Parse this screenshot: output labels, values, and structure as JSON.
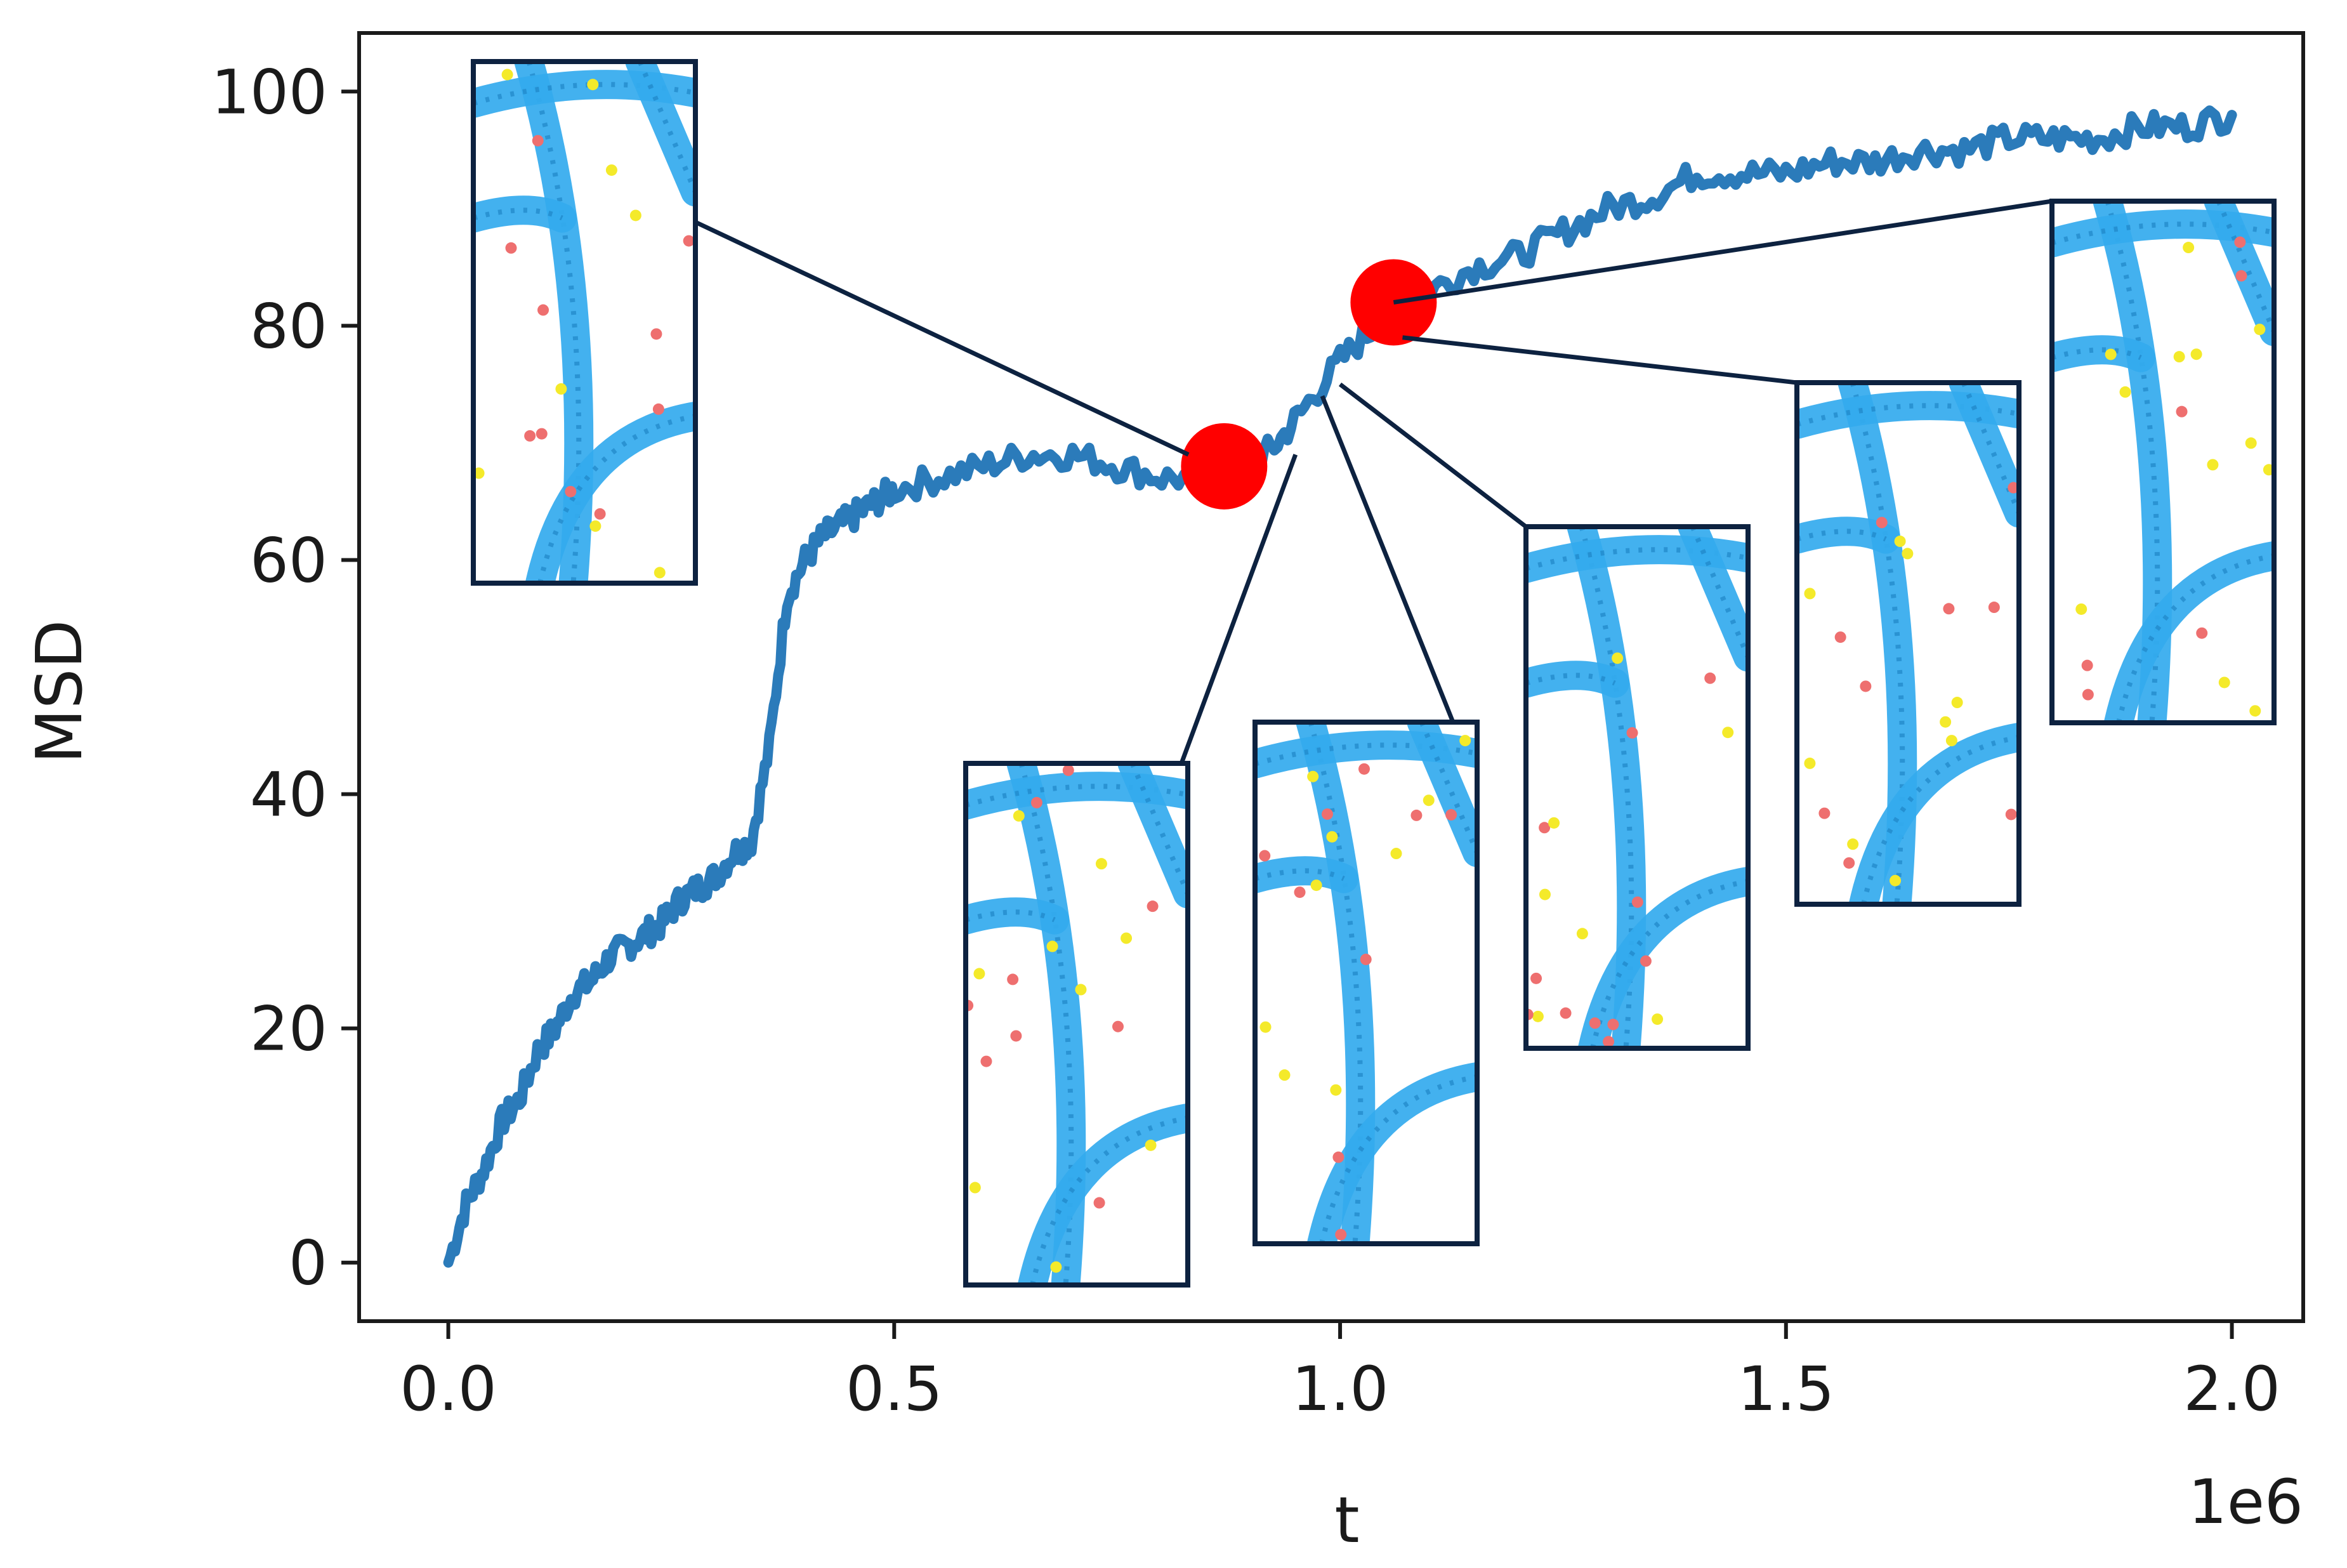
{
  "chart_data": {
    "type": "line",
    "title": "",
    "xlabel": "t",
    "ylabel": "MSD",
    "x_offset_label": "1e6",
    "xlim": [
      -0.1,
      2.08
    ],
    "ylim": [
      -5,
      105
    ],
    "x_ticks": [
      0.0,
      0.5,
      1.0,
      1.5,
      2.0
    ],
    "x_tick_labels": [
      "0.0",
      "0.5",
      "1.0",
      "1.5",
      "2.0"
    ],
    "y_ticks": [
      0,
      20,
      40,
      60,
      80,
      100
    ],
    "y_tick_labels": [
      "0",
      "20",
      "40",
      "60",
      "80",
      "100"
    ],
    "grid": false,
    "colors": {
      "series": "#2b7bba",
      "marker": "#ff0000",
      "connector": "#0d2240",
      "inset_border": "#0d2240",
      "filament": "#33aaee"
    },
    "series": [
      {
        "x": [
          0.0,
          0.02,
          0.04,
          0.06,
          0.08,
          0.1,
          0.12,
          0.14,
          0.16,
          0.18,
          0.2,
          0.22,
          0.24,
          0.26,
          0.28,
          0.3,
          0.32,
          0.34,
          0.36,
          0.38,
          0.4,
          0.42,
          0.44,
          0.46,
          0.48,
          0.5,
          0.55,
          0.6,
          0.65,
          0.7,
          0.75,
          0.8,
          0.85,
          0.87,
          0.9,
          0.93,
          0.96,
          1.0,
          1.04,
          1.07,
          1.1,
          1.15,
          1.2,
          1.25,
          1.3,
          1.35,
          1.4,
          1.45,
          1.5,
          1.55,
          1.6,
          1.65,
          1.7,
          1.75,
          1.8,
          1.85,
          1.9,
          1.95,
          2.0
        ],
        "y": [
          0,
          5,
          8,
          12,
          14,
          18,
          20,
          23,
          24,
          26,
          27,
          28,
          29,
          31,
          32,
          33,
          35,
          36,
          44,
          57,
          60,
          62,
          63,
          64,
          65,
          66,
          67,
          68,
          69,
          69,
          68,
          67,
          67,
          68,
          68,
          70,
          73,
          77,
          80,
          82,
          83,
          85,
          86,
          88,
          90,
          91,
          93,
          93,
          93,
          94,
          94,
          95,
          95,
          96,
          96,
          96,
          97,
          97,
          98
        ]
      }
    ],
    "markers": [
      {
        "x": 0.87,
        "y": 68
      },
      {
        "x": 1.06,
        "y": 82
      }
    ],
    "insets": [
      {
        "name": "inset-1",
        "anchor": {
          "x": 0.83,
          "y": 69
        }
      },
      {
        "name": "inset-2",
        "anchor": {
          "x": 0.95,
          "y": 69
        }
      },
      {
        "name": "inset-3",
        "anchor": {
          "x": 0.98,
          "y": 74
        }
      },
      {
        "name": "inset-4",
        "anchor": {
          "x": 1.0,
          "y": 75
        }
      },
      {
        "name": "inset-5",
        "anchor": {
          "x": 1.07,
          "y": 79
        }
      },
      {
        "name": "inset-6",
        "anchor": {
          "x": 1.06,
          "y": 82
        }
      }
    ]
  }
}
